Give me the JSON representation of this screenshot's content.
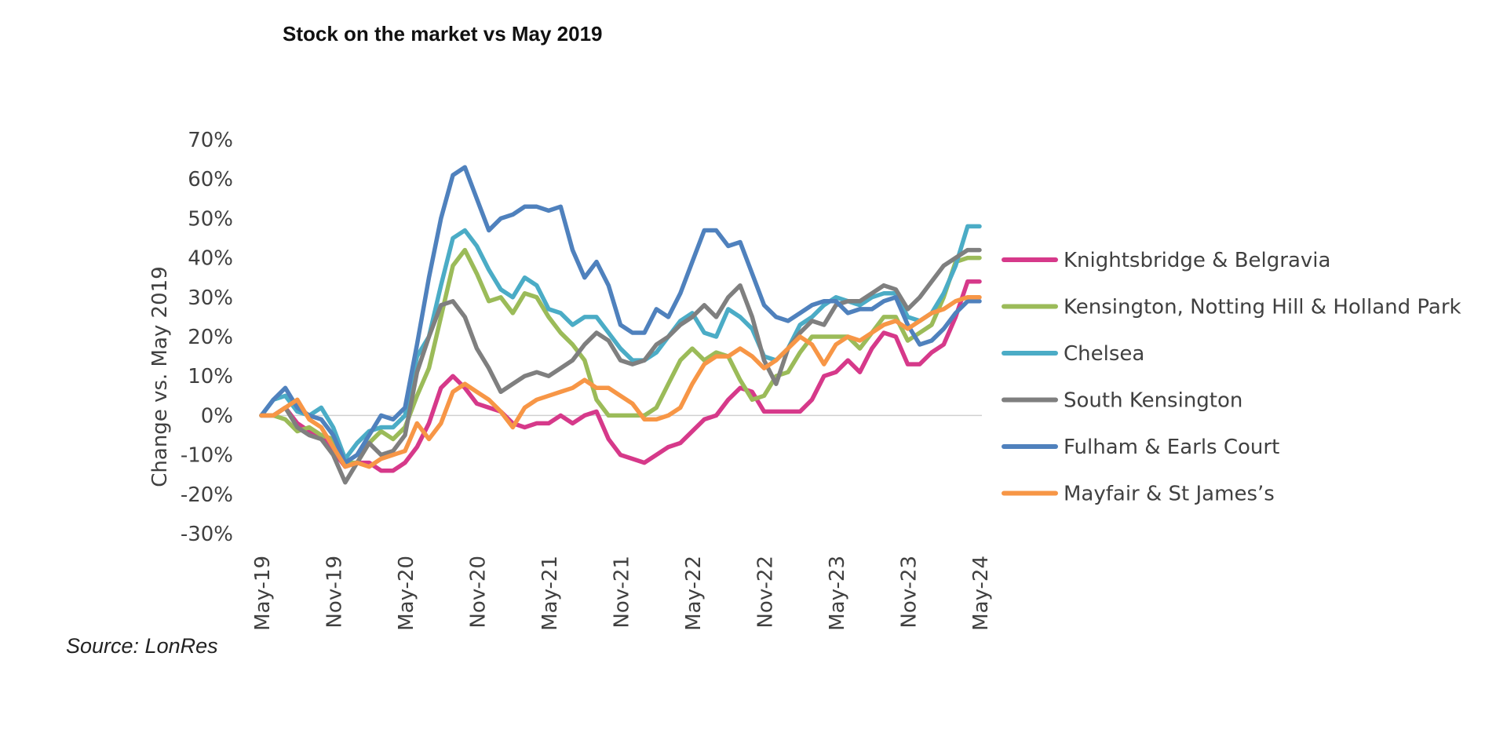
{
  "header": {
    "title": "Stock on the market vs May 2019"
  },
  "footer": {
    "source": "Source: LonRes"
  },
  "chart_data": {
    "type": "line",
    "title": "Stock on the market vs May 2019",
    "xlabel": "",
    "ylabel": "Change vs. May 2019",
    "ylim": [
      -0.3,
      0.7
    ],
    "yticks": [
      0.7,
      0.6,
      0.5,
      0.4,
      0.3,
      0.2,
      0.1,
      0.0,
      -0.1,
      -0.2,
      -0.3
    ],
    "ytick_labels": [
      "70%",
      "60%",
      "50%",
      "40%",
      "30%",
      "20%",
      "10%",
      "0%",
      "-10%",
      "-20%",
      "-30%"
    ],
    "xtick_labels": [
      "May-19",
      "Nov-19",
      "May-20",
      "Nov-20",
      "May-21",
      "Nov-21",
      "May-22",
      "Nov-22",
      "May-23",
      "Nov-23",
      "May-24"
    ],
    "xtick_month_index": [
      0,
      6,
      12,
      18,
      24,
      30,
      36,
      42,
      48,
      54,
      60
    ],
    "months_count": 61,
    "grid": false,
    "zero_line": true,
    "legend_position": "right",
    "series": [
      {
        "name": "Knightsbridge & Belgravia",
        "color": "#D6398A",
        "values": [
          0.0,
          0.0,
          0.02,
          -0.02,
          -0.04,
          -0.05,
          -0.09,
          -0.13,
          -0.12,
          -0.12,
          -0.14,
          -0.14,
          -0.12,
          -0.08,
          -0.02,
          0.07,
          0.1,
          0.07,
          0.03,
          0.02,
          0.01,
          -0.02,
          -0.03,
          -0.02,
          -0.02,
          0.0,
          -0.02,
          0.0,
          0.01,
          -0.06,
          -0.1,
          -0.11,
          -0.12,
          -0.1,
          -0.08,
          -0.07,
          -0.04,
          -0.01,
          0.0,
          0.04,
          0.07,
          0.06,
          0.01,
          0.01,
          0.01,
          0.01,
          0.04,
          0.1,
          0.11,
          0.14,
          0.11,
          0.17,
          0.21,
          0.2,
          0.13,
          0.13,
          0.16,
          0.18,
          0.25,
          0.34,
          0.34
        ]
      },
      {
        "name": "Kensington, Notting Hill & Holland Park",
        "color": "#9BBB59",
        "values": [
          0.0,
          0.0,
          -0.01,
          -0.04,
          -0.03,
          -0.05,
          -0.06,
          -0.12,
          -0.12,
          -0.07,
          -0.04,
          -0.06,
          -0.03,
          0.05,
          0.12,
          0.25,
          0.38,
          0.42,
          0.36,
          0.29,
          0.3,
          0.26,
          0.31,
          0.3,
          0.25,
          0.21,
          0.18,
          0.14,
          0.04,
          0.0,
          0.0,
          0.0,
          0.0,
          0.02,
          0.08,
          0.14,
          0.17,
          0.14,
          0.16,
          0.15,
          0.09,
          0.04,
          0.05,
          0.1,
          0.11,
          0.16,
          0.2,
          0.2,
          0.2,
          0.2,
          0.17,
          0.21,
          0.25,
          0.25,
          0.19,
          0.21,
          0.23,
          0.3,
          0.39,
          0.4,
          0.4
        ]
      },
      {
        "name": "Chelsea",
        "color": "#4BACC6",
        "values": [
          0.0,
          0.04,
          0.05,
          0.01,
          0.0,
          0.02,
          -0.03,
          -0.11,
          -0.07,
          -0.04,
          -0.03,
          -0.03,
          0.0,
          0.15,
          0.2,
          0.33,
          0.45,
          0.47,
          0.43,
          0.37,
          0.32,
          0.3,
          0.35,
          0.33,
          0.27,
          0.26,
          0.23,
          0.25,
          0.25,
          0.21,
          0.17,
          0.14,
          0.14,
          0.16,
          0.2,
          0.24,
          0.26,
          0.21,
          0.2,
          0.27,
          0.25,
          0.22,
          0.15,
          0.14,
          0.17,
          0.23,
          0.25,
          0.28,
          0.3,
          0.29,
          0.28,
          0.3,
          0.31,
          0.31,
          0.25,
          0.24,
          0.26,
          0.31,
          0.38,
          0.48,
          0.48
        ]
      },
      {
        "name": "South Kensington",
        "color": "#7F7F7F",
        "values": [
          0.0,
          0.0,
          0.02,
          -0.03,
          -0.05,
          -0.06,
          -0.1,
          -0.17,
          -0.12,
          -0.07,
          -0.1,
          -0.09,
          -0.05,
          0.11,
          0.2,
          0.28,
          0.29,
          0.25,
          0.17,
          0.12,
          0.06,
          0.08,
          0.1,
          0.11,
          0.1,
          0.12,
          0.14,
          0.18,
          0.21,
          0.19,
          0.14,
          0.13,
          0.14,
          0.18,
          0.2,
          0.23,
          0.25,
          0.28,
          0.25,
          0.3,
          0.33,
          0.25,
          0.14,
          0.08,
          0.17,
          0.21,
          0.24,
          0.23,
          0.28,
          0.29,
          0.29,
          0.31,
          0.33,
          0.32,
          0.27,
          0.3,
          0.34,
          0.38,
          0.4,
          0.42,
          0.42
        ]
      },
      {
        "name": "Fulham & Earls Court",
        "color": "#4F81BD",
        "values": [
          0.0,
          0.04,
          0.07,
          0.02,
          0.0,
          -0.01,
          -0.05,
          -0.12,
          -0.1,
          -0.05,
          0.0,
          -0.01,
          0.02,
          0.18,
          0.35,
          0.5,
          0.61,
          0.63,
          0.55,
          0.47,
          0.5,
          0.51,
          0.53,
          0.53,
          0.52,
          0.53,
          0.42,
          0.35,
          0.39,
          0.33,
          0.23,
          0.21,
          0.21,
          0.27,
          0.25,
          0.31,
          0.39,
          0.47,
          0.47,
          0.43,
          0.44,
          0.36,
          0.28,
          0.25,
          0.24,
          0.26,
          0.28,
          0.29,
          0.29,
          0.26,
          0.27,
          0.27,
          0.29,
          0.3,
          0.23,
          0.18,
          0.19,
          0.22,
          0.26,
          0.29,
          0.29
        ]
      },
      {
        "name": "Mayfair & St James’s",
        "color": "#F79646",
        "values": [
          0.0,
          0.0,
          0.02,
          0.04,
          -0.01,
          -0.03,
          -0.08,
          -0.13,
          -0.12,
          -0.13,
          -0.11,
          -0.1,
          -0.09,
          -0.02,
          -0.06,
          -0.02,
          0.06,
          0.08,
          0.06,
          0.04,
          0.01,
          -0.03,
          0.02,
          0.04,
          0.05,
          0.06,
          0.07,
          0.09,
          0.07,
          0.07,
          0.05,
          0.03,
          -0.01,
          -0.01,
          0.0,
          0.02,
          0.08,
          0.13,
          0.15,
          0.15,
          0.17,
          0.15,
          0.12,
          0.14,
          0.17,
          0.2,
          0.18,
          0.13,
          0.18,
          0.2,
          0.19,
          0.21,
          0.23,
          0.24,
          0.22,
          0.24,
          0.26,
          0.27,
          0.29,
          0.3,
          0.3
        ]
      }
    ]
  }
}
